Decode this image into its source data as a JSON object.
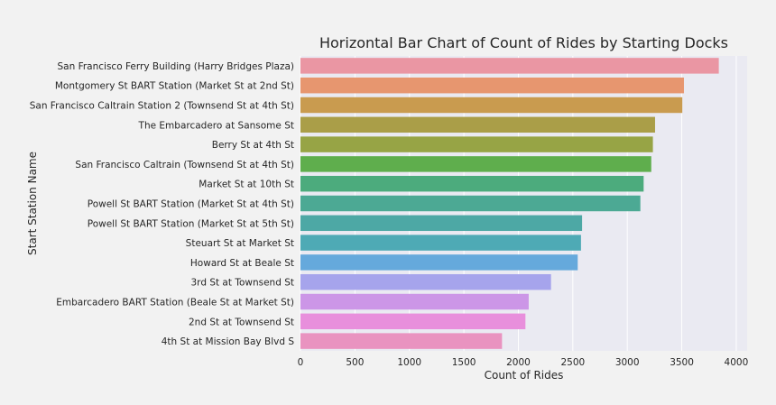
{
  "chart_data": {
    "type": "bar",
    "orientation": "horizontal",
    "title": "Horizontal Bar Chart of Count of Rides by Starting Docks",
    "xlabel": "Count of Rides",
    "ylabel": "Start Station Name",
    "xlim": [
      0,
      4100
    ],
    "xticks": [
      0,
      500,
      1000,
      1500,
      2000,
      2500,
      3000,
      3500,
      4000
    ],
    "grid": true,
    "categories": [
      "San Francisco Ferry Building (Harry Bridges Plaza)",
      "Montgomery St BART Station (Market St at 2nd St)",
      "San Francisco Caltrain Station 2  (Townsend St at 4th St)",
      "The Embarcadero at Sansome St",
      "Berry St at 4th St",
      "San Francisco Caltrain (Townsend St at 4th St)",
      "Market St at 10th St",
      "Powell St BART Station (Market St at 4th St)",
      "Powell St BART Station (Market St at 5th St)",
      "Steuart St at Market St",
      "Howard St at Beale St",
      "3rd St at Townsend St",
      "Embarcadero BART Station (Beale St at Market St)",
      "2nd St at Townsend St",
      "4th St at Mission Bay Blvd S"
    ],
    "values": [
      3840,
      3520,
      3505,
      3255,
      3235,
      3220,
      3150,
      3120,
      2585,
      2575,
      2545,
      2300,
      2095,
      2065,
      1850
    ],
    "colors": [
      "#ea96a3",
      "#e7966f",
      "#c99b4f",
      "#aa9e48",
      "#97a445",
      "#5fae4d",
      "#4cab7d",
      "#4ca994",
      "#4da8a5",
      "#4eaab5",
      "#65a9dc",
      "#a6a4ec",
      "#cc96e7",
      "#e88fdc",
      "#e993c0"
    ],
    "background_color": "#eaeaf2",
    "gridline_color": "#ffffff"
  }
}
